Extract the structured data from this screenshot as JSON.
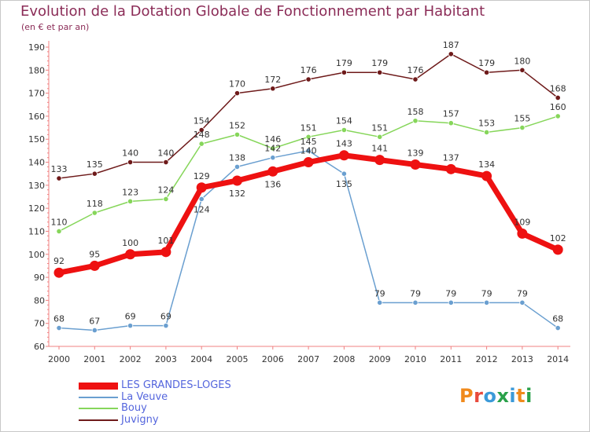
{
  "header": {
    "title": "Evolution de la Dotation Globale de Fonctionnement par Habitant",
    "subtitle": "(en € et par an)"
  },
  "logo": {
    "text": "Proxiti",
    "colors": [
      "#f08a1c",
      "#e84a3c",
      "#3b9ad9",
      "#2aa14a",
      "#3b9ad9",
      "#f08a1c",
      "#2aa14a"
    ]
  },
  "chart_data": {
    "type": "line",
    "categories": [
      "2000",
      "2001",
      "2002",
      "2003",
      "2004",
      "2005",
      "2006",
      "2007",
      "2008",
      "2009",
      "2010",
      "2011",
      "2012",
      "2013",
      "2014"
    ],
    "ylim": [
      60,
      190
    ],
    "yticks": [
      60,
      70,
      80,
      90,
      100,
      110,
      120,
      130,
      140,
      150,
      160,
      170,
      180,
      190
    ],
    "grid": "none",
    "legend": "bottom-left",
    "series": [
      {
        "name": "Juvigny",
        "color": "#6e1a1a",
        "width": 1.5,
        "marker": 3.2,
        "values": [
          133,
          135,
          140,
          140,
          154,
          170,
          172,
          176,
          179,
          179,
          176,
          187,
          179,
          180,
          168
        ],
        "label_pos": [
          "a",
          "a",
          "a",
          "a",
          "a",
          "a",
          "a",
          "a",
          "a",
          "a",
          "a",
          "a",
          "a",
          "a",
          "a"
        ]
      },
      {
        "name": "Bouy",
        "color": "#86d65a",
        "width": 1.5,
        "marker": 3.2,
        "values": [
          110,
          118,
          123,
          124,
          148,
          152,
          146,
          151,
          154,
          151,
          158,
          157,
          153,
          155,
          160
        ],
        "label_pos": [
          "a",
          "a",
          "a",
          "a",
          "a",
          "a",
          "a",
          "a",
          "a",
          "a",
          "a",
          "a",
          "a",
          "a",
          "a"
        ]
      },
      {
        "name": "La Veuve",
        "color": "#6a9fd0",
        "width": 1.5,
        "marker": 3.2,
        "values": [
          68,
          67,
          69,
          69,
          124,
          138,
          142,
          145,
          135,
          79,
          79,
          79,
          79,
          79,
          68
        ],
        "label_pos": [
          "a",
          "a",
          "a",
          "a",
          "b",
          "a",
          "a",
          "a",
          "b",
          "a",
          "a",
          "a",
          "a",
          "a",
          "a"
        ]
      },
      {
        "name": "LES GRANDES-LOGES",
        "color": "#ee1111",
        "width": 7,
        "marker": 6.5,
        "values": [
          92,
          95,
          100,
          101,
          129,
          132,
          136,
          140,
          143,
          141,
          139,
          137,
          134,
          109,
          102
        ],
        "label_pos": [
          "a",
          "a",
          "a",
          "a",
          "a",
          "b",
          "b",
          "a",
          "a",
          "a",
          "a",
          "a",
          "a",
          "a",
          "a"
        ]
      }
    ]
  }
}
